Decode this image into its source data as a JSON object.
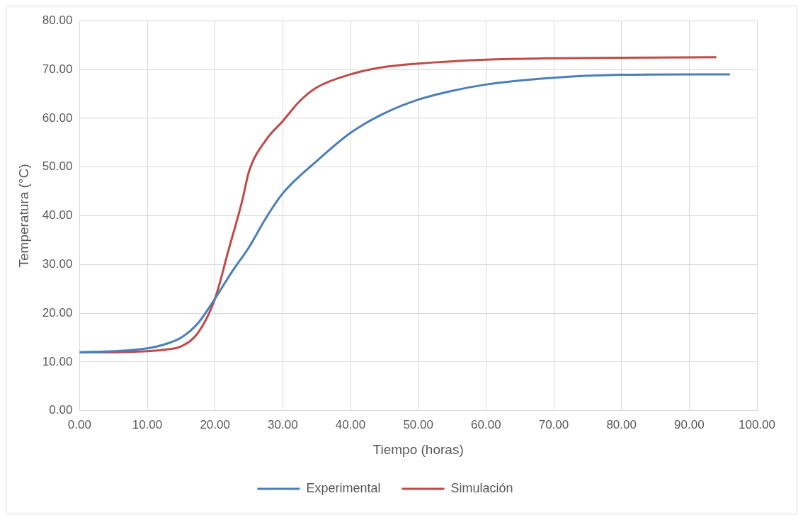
{
  "chart_data": {
    "type": "line",
    "xlabel": "Tiempo (horas)",
    "ylabel": "Temperatura (°C)",
    "xlim": [
      0,
      100
    ],
    "xticks": [
      {
        "value": 0,
        "label": "0.00"
      },
      {
        "value": 10,
        "label": "10.00"
      },
      {
        "value": 20,
        "label": "20.00"
      },
      {
        "value": 30,
        "label": "30.00"
      },
      {
        "value": 40,
        "label": "40.00"
      },
      {
        "value": 50,
        "label": "50.00"
      },
      {
        "value": 60,
        "label": "60.00"
      },
      {
        "value": 70,
        "label": "70.00"
      },
      {
        "value": 80,
        "label": "80.00"
      },
      {
        "value": 90,
        "label": "90.00"
      },
      {
        "value": 100,
        "label": "100.00"
      }
    ],
    "ylim": [
      0,
      80
    ],
    "yticks": [
      {
        "value": 0,
        "label": "0.00"
      },
      {
        "value": 10,
        "label": "10.00"
      },
      {
        "value": 20,
        "label": "20.00"
      },
      {
        "value": 30,
        "label": "30.00"
      },
      {
        "value": 40,
        "label": "40.00"
      },
      {
        "value": 50,
        "label": "50.00"
      },
      {
        "value": 60,
        "label": "60.00"
      },
      {
        "value": 70,
        "label": "70.00"
      },
      {
        "value": 80,
        "label": "80.00"
      }
    ],
    "grid": true,
    "legend": "bottom",
    "marker": "none",
    "line_style": "solid",
    "series": [
      {
        "name": "Experimental",
        "color": "#4a7ebb",
        "x": [
          0,
          5,
          10,
          12.5,
          15,
          17.5,
          20,
          22.5,
          25,
          27.5,
          30,
          35,
          40,
          45,
          50,
          55,
          60,
          70,
          80,
          90,
          96
        ],
        "values": [
          12,
          12.2,
          12.8,
          13.6,
          15,
          18,
          23,
          28.5,
          33.5,
          39.5,
          44.6,
          51.2,
          57,
          61,
          63.8,
          65.6,
          66.9,
          68.3,
          68.9,
          69,
          69
        ]
      },
      {
        "name": "Simulación",
        "color": "#be4b48",
        "x": [
          0,
          5,
          10,
          12.5,
          15,
          17.5,
          20,
          22,
          24,
          25,
          27.5,
          30,
          32.5,
          35,
          40,
          45,
          50,
          60,
          70,
          80,
          94
        ],
        "values": [
          12,
          12,
          12.2,
          12.5,
          13.2,
          16,
          23,
          33,
          43,
          49,
          55.5,
          59.4,
          63.5,
          66.3,
          69,
          70.5,
          71.2,
          72,
          72.3,
          72.4,
          72.5
        ]
      }
    ]
  }
}
